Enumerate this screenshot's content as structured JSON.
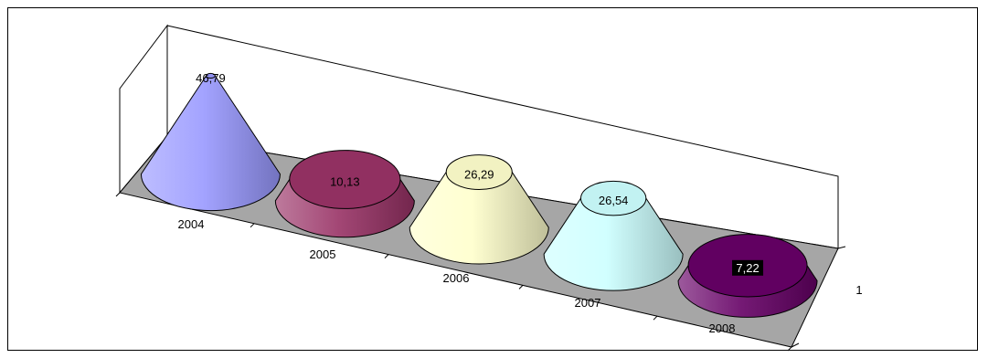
{
  "chart_data": {
    "type": "bar",
    "subtype": "3d-cone",
    "categories": [
      "2004",
      "2005",
      "2006",
      "2007",
      "2008"
    ],
    "series": [
      {
        "name": "1",
        "values": [
          46.79,
          10.13,
          26.29,
          26.54,
          7.22
        ]
      }
    ],
    "data_labels": [
      "46,79",
      "10,13",
      "26,29",
      "26,54",
      "7,22"
    ],
    "series_axis_label": "1",
    "title": "",
    "xlabel": "",
    "ylabel": "",
    "ylim": [
      0,
      50
    ],
    "grid": false,
    "legend": "none",
    "colors": [
      "#9999ff",
      "#993366",
      "#ffffcc",
      "#ccffff",
      "#660066"
    ],
    "floor_color": "#a6a6a6"
  }
}
